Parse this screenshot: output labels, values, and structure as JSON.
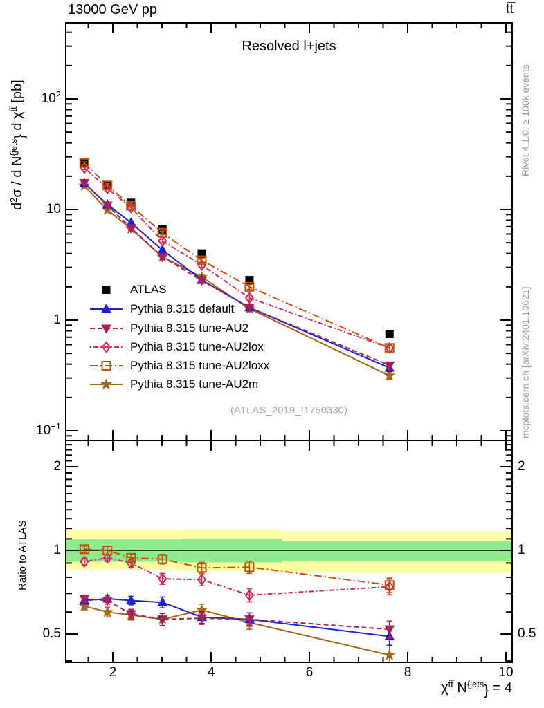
{
  "header": {
    "beam": "13000 GeV pp",
    "process": "tt̅"
  },
  "side_notes": {
    "rivet": "Rivet 4.1.0, ≥ 100k events",
    "mcplots": "mcplots.cern.ch [arXiv:2401.10621]"
  },
  "axes": {
    "ylabel_parts": {
      "d": "d",
      "exp": "2",
      "mid": "σ / d N",
      "jets": "{jets",
      "brace": "}",
      "after": " d ",
      "chi": "χ",
      "tt": "tt̅",
      "unit": " [pb]"
    },
    "xlabel_parts": {
      "chi": "χ",
      "tt": "tt̅",
      "n": " N",
      "jets": "{jets",
      "brace": "}",
      "rest": " = 4"
    },
    "ratio_label": "Ratio to ATLAS"
  },
  "chart_data": {
    "type": "line",
    "title": "Resolved l+jets",
    "xlabel": "χ^tt̅ N^{jets}} = 4",
    "ylabel": "d^2σ / d N^{jets}} d χ^tt̅ [pb]",
    "ratio_label": "Ratio to ATLAS",
    "watermark": "(ATLAS_2019_I1750330)",
    "x_scale": "linear",
    "y_scale": "log",
    "x_range": [
      1.042,
      10.127
    ],
    "x_ticks": [
      2,
      4,
      6,
      8,
      10
    ],
    "main_ylim": [
      0.0817,
      487
    ],
    "main_yticks": [
      {
        "v": 100,
        "base": "10",
        "exp": "2"
      },
      {
        "v": 10,
        "base": "10",
        "exp": ""
      },
      {
        "v": 1,
        "base": "1",
        "exp": ""
      },
      {
        "v": 0.1,
        "base": "10",
        "exp": "−1"
      }
    ],
    "ratio_ylim": [
      0.395,
      2.486
    ],
    "ratio_yticks": [
      {
        "v": 2,
        "label": "2"
      },
      {
        "v": 1,
        "label": "1"
      },
      {
        "v": 0.5,
        "label": "0.5"
      }
    ],
    "x": [
      1.42,
      1.89,
      2.37,
      3.01,
      3.81,
      4.78,
      7.63
    ],
    "series": [
      {
        "name": "ATLAS",
        "color": "#000000",
        "marker": "square",
        "filled": true,
        "dash": "",
        "show_line": false,
        "values": [
          26.0,
          16.5,
          11.5,
          6.6,
          4.0,
          2.3,
          0.75
        ],
        "ratio": null,
        "rel_err": null
      },
      {
        "name": "Pythia 8.315 default",
        "color": "#1f1fd6",
        "marker": "triangle-up",
        "filled": true,
        "dash": "",
        "show_line": true,
        "values": [
          17.2,
          11.1,
          7.6,
          4.3,
          2.3,
          1.3,
          0.37
        ],
        "ratio": [
          0.66,
          0.67,
          0.66,
          0.65,
          0.575,
          0.565,
          0.49
        ],
        "rel_err": [
          0.03,
          0.03,
          0.035,
          0.045,
          0.05,
          0.055,
          0.07
        ]
      },
      {
        "name": "Pythia 8.315 tune-AU2",
        "color": "#a3205a",
        "marker": "triangle-down",
        "filled": true,
        "dash": "7 4",
        "show_line": true,
        "values": [
          17.4,
          10.9,
          6.8,
          3.73,
          2.28,
          1.3,
          0.39
        ],
        "ratio": [
          0.67,
          0.66,
          0.59,
          0.565,
          0.57,
          0.565,
          0.52
        ],
        "rel_err": [
          0.03,
          0.03,
          0.04,
          0.05,
          0.05,
          0.055,
          0.07
        ]
      },
      {
        "name": "Pythia 8.315 tune-AU2lox",
        "color": "#d02858",
        "marker": "diamond",
        "filled": false,
        "dash": "2 3 7 3",
        "show_line": true,
        "values": [
          23.7,
          15.5,
          10.4,
          5.2,
          3.15,
          1.59,
          0.56
        ],
        "ratio": [
          0.91,
          0.94,
          0.9,
          0.79,
          0.785,
          0.69,
          0.74
        ],
        "rel_err": [
          0.03,
          0.03,
          0.035,
          0.045,
          0.05,
          0.055,
          0.065
        ]
      },
      {
        "name": "Pythia 8.315 tune-AU2loxx",
        "color": "#c4500e",
        "marker": "square",
        "filled": false,
        "dash": "11 4 2 4",
        "show_line": true,
        "values": [
          26.3,
          16.5,
          10.8,
          6.15,
          3.47,
          2.0,
          0.56
        ],
        "ratio": [
          1.01,
          1.0,
          0.94,
          0.93,
          0.865,
          0.87,
          0.75
        ],
        "rel_err": [
          0.025,
          0.035,
          0.035,
          0.04,
          0.045,
          0.05,
          0.06
        ]
      },
      {
        "name": "Pythia 8.315 tune-AU2m",
        "color": "#a3661a",
        "marker": "star",
        "filled": true,
        "dash": "",
        "show_line": true,
        "values": [
          16.4,
          9.9,
          6.7,
          3.73,
          2.45,
          1.27,
          0.315
        ],
        "ratio": [
          0.63,
          0.6,
          0.585,
          0.565,
          0.61,
          0.55,
          0.42
        ],
        "rel_err": [
          0.03,
          0.04,
          0.04,
          0.05,
          0.05,
          0.055,
          0.08
        ]
      }
    ],
    "draw_order": [
      0,
      5,
      1,
      2,
      3,
      4
    ],
    "bands": {
      "yellow": {
        "color": "#ffffa6",
        "segments": [
          {
            "x0": 1.042,
            "x1": 3.39,
            "lo": 0.85,
            "hi": 1.185
          },
          {
            "x0": 3.39,
            "x1": 5.45,
            "lo": 0.84,
            "hi": 1.19
          },
          {
            "x0": 5.45,
            "x1": 10.127,
            "lo": 0.83,
            "hi": 1.17
          }
        ]
      },
      "green": {
        "color": "#8deb8d",
        "segments": [
          {
            "x0": 1.042,
            "x1": 3.39,
            "lo": 0.91,
            "hi": 1.095
          },
          {
            "x0": 3.39,
            "x1": 5.45,
            "lo": 0.905,
            "hi": 1.1
          },
          {
            "x0": 5.45,
            "x1": 10.127,
            "lo": 0.915,
            "hi": 1.08
          }
        ]
      }
    }
  }
}
